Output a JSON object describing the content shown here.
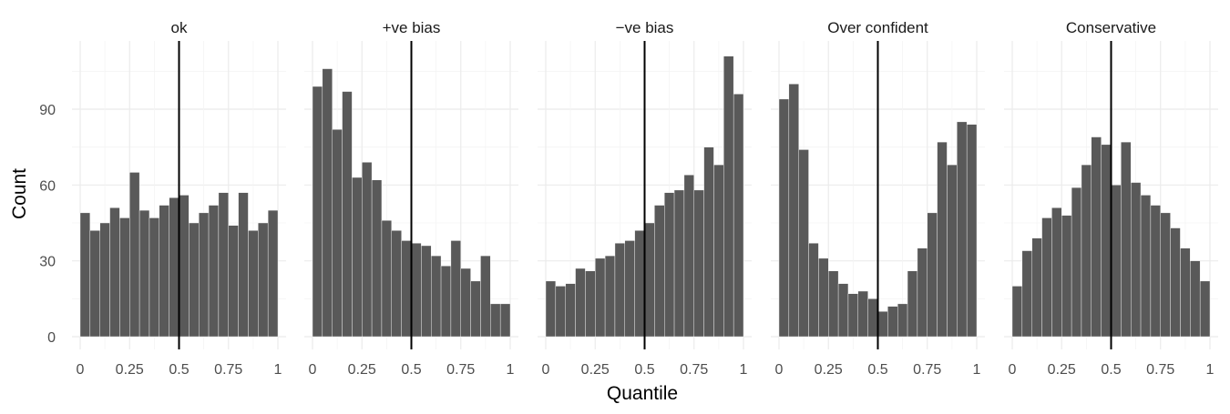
{
  "chart_data": {
    "type": "bar",
    "variant": "faceted-histogram",
    "xlabel": "Quantile",
    "ylabel": "Count",
    "xlim": [
      0,
      1
    ],
    "ylim": [
      0,
      115
    ],
    "x_ticks": [
      0,
      0.25,
      0.5,
      0.75,
      1
    ],
    "x_tick_labels": [
      "0",
      "0.25",
      "0.5",
      "0.75",
      "1"
    ],
    "y_ticks": [
      0,
      30,
      60,
      90
    ],
    "y_tick_labels": [
      "0",
      "30",
      "60",
      "90"
    ],
    "grid": true,
    "bin_centers": [
      0.025,
      0.075,
      0.125,
      0.175,
      0.225,
      0.275,
      0.325,
      0.375,
      0.425,
      0.475,
      0.525,
      0.575,
      0.625,
      0.675,
      0.725,
      0.775,
      0.825,
      0.875,
      0.925,
      0.975
    ],
    "bin_width": 0.05,
    "reference_line_x": 0.5,
    "bar_color": "#595959",
    "line_color": "#000000",
    "panels": [
      {
        "title": "ok",
        "values": [
          49,
          42,
          45,
          51,
          47,
          65,
          50,
          47,
          52,
          55,
          56,
          45,
          49,
          52,
          57,
          44,
          57,
          42,
          45,
          50
        ]
      },
      {
        "title": "+ve bias",
        "values": [
          99,
          106,
          82,
          97,
          63,
          69,
          62,
          46,
          42,
          38,
          37,
          36,
          32,
          28,
          38,
          27,
          22,
          32,
          13,
          13
        ]
      },
      {
        "title": "−ve bias",
        "values": [
          22,
          20,
          21,
          27,
          26,
          31,
          32,
          37,
          38,
          42,
          45,
          52,
          57,
          58,
          64,
          58,
          75,
          68,
          111,
          96
        ]
      },
      {
        "title": "Over confident",
        "values": [
          94,
          100,
          74,
          37,
          31,
          26,
          21,
          17,
          18,
          15,
          10,
          12,
          13,
          26,
          35,
          49,
          77,
          68,
          85,
          84
        ]
      },
      {
        "title": "Conservative",
        "values": [
          20,
          34,
          39,
          47,
          51,
          48,
          59,
          68,
          79,
          76,
          60,
          77,
          61,
          56,
          52,
          49,
          43,
          35,
          30,
          22
        ]
      }
    ]
  }
}
